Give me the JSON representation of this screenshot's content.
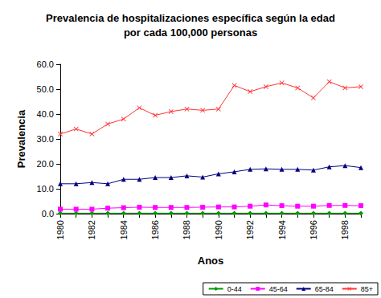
{
  "chart_data": {
    "type": "line",
    "title": "Prevalencia de hospitalizaciones específica según la edad\npor cada 100,000 personas",
    "x_label": "Anos",
    "y_label": "Prevalencia",
    "categories": [
      "1980",
      null,
      "1982",
      null,
      "1984",
      null,
      "1986",
      null,
      "1988",
      null,
      "1990",
      null,
      "1992",
      null,
      "1994",
      null,
      "1996",
      null,
      "1998",
      null
    ],
    "series": [
      {
        "name": "0-44",
        "color": "#009900",
        "marker": "diamond",
        "values": [
          0.2,
          0.2,
          0.2,
          0.2,
          0.2,
          0.2,
          0.2,
          0.2,
          0.2,
          0.2,
          0.2,
          0.2,
          0.2,
          0.2,
          0.2,
          0.2,
          0.2,
          0.2,
          0.2,
          0.2
        ]
      },
      {
        "name": "45-64",
        "color": "#ff00ff",
        "marker": "square",
        "values": [
          1.8,
          1.8,
          1.8,
          2.2,
          2.4,
          2.6,
          2.5,
          2.5,
          2.5,
          2.6,
          2.7,
          2.7,
          3.0,
          3.5,
          3.2,
          3.0,
          3.0,
          3.3,
          3.3,
          3.2
        ]
      },
      {
        "name": "65-84",
        "color": "#000080",
        "marker": "triangle",
        "values": [
          12.0,
          12.0,
          12.5,
          12.0,
          13.8,
          13.8,
          14.5,
          14.5,
          15.2,
          14.7,
          16.0,
          16.8,
          17.8,
          18.0,
          17.8,
          17.8,
          17.5,
          18.8,
          19.3,
          18.5
        ]
      },
      {
        "name": "85+",
        "color": "#ff3333",
        "marker": "x",
        "values": [
          32.0,
          34.0,
          32.0,
          36.0,
          38.0,
          42.5,
          39.5,
          41.0,
          42.0,
          41.5,
          42.0,
          51.5,
          49.0,
          51.0,
          52.5,
          50.5,
          46.5,
          53.0,
          50.5,
          51.0
        ]
      }
    ],
    "ylim": [
      0,
      60
    ],
    "yticks": [
      {
        "value": 0,
        "label": "0.0"
      },
      {
        "value": 10,
        "label": "10.0"
      },
      {
        "value": 20,
        "label": "20.0"
      },
      {
        "value": 30,
        "label": "30.0"
      },
      {
        "value": 40,
        "label": "40.0"
      },
      {
        "value": 50,
        "label": "50.0"
      },
      {
        "value": 60,
        "label": "60.0"
      }
    ],
    "grid": false,
    "legend": "bottom-right"
  }
}
